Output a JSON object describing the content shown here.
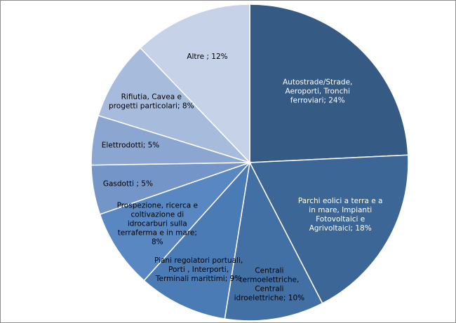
{
  "chart_data": {
    "type": "pie",
    "title": "",
    "slices": [
      {
        "label": [
          "Autostrade/Strade,",
          "Aeroporti, Tronchi",
          "ferroviari; 24%"
        ],
        "value": 24,
        "color": "#355a84",
        "text_color": "#ffffff"
      },
      {
        "label": [
          "Parchi eolici a terra e a",
          "in mare, Impianti",
          "Fotovoltaici e",
          "Agrivoltaici; 18%"
        ],
        "value": 18,
        "color": "#3c6696",
        "text_color": "#ffffff"
      },
      {
        "label": [
          "Centrali",
          "termoelettriche,",
          "Centrali",
          "idroelettriche; 10%"
        ],
        "value": 10,
        "color": "#4370a4",
        "text_color": "#000000"
      },
      {
        "label": [
          "Piani regolatori portuali,",
          "Porti , Interporti,",
          "Terminali marittimi; 9%"
        ],
        "value": 9,
        "color": "#4b7bb5",
        "text_color": "#000000"
      },
      {
        "label": [
          "Prospezione, ricerca e",
          "coltivazione di",
          "idrocarburi sulla",
          "terraferma e in mare;",
          "8%"
        ],
        "value": 8,
        "color": "#5887c2",
        "text_color": "#000000"
      },
      {
        "label": [
          "Gasdotti ; 5%"
        ],
        "value": 5,
        "color": "#7395c8",
        "text_color": "#000000"
      },
      {
        "label": [
          "Elettrodotti; 5%"
        ],
        "value": 5,
        "color": "#8ba6d1",
        "text_color": "#000000"
      },
      {
        "label": [
          "Rifiutia, Cavea e",
          "progetti particolari; 8%"
        ],
        "value": 8,
        "color": "#a7bbdc",
        "text_color": "#000000"
      },
      {
        "label": [
          "Altre ; 12%"
        ],
        "value": 12,
        "color": "#c6d2e8",
        "text_color": "#000000"
      }
    ],
    "legend": "none",
    "start_angle_deg": 0,
    "direction": "clockwise"
  }
}
